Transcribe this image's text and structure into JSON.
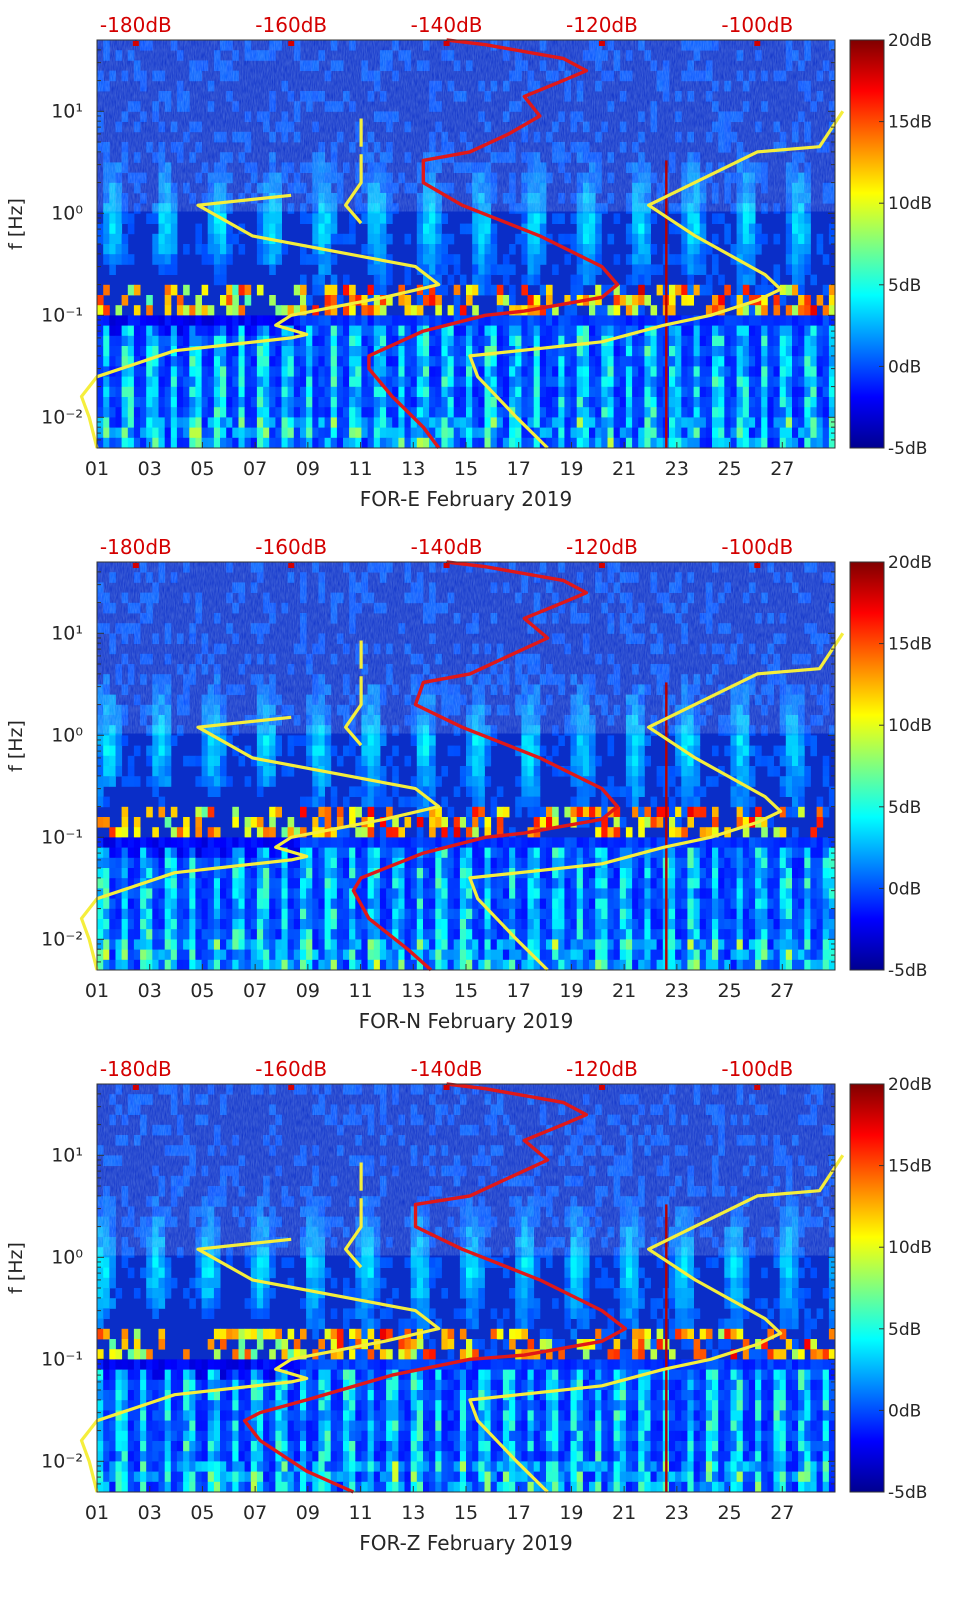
{
  "figure": {
    "ylabel": "f [Hz]",
    "y_ticks": [
      "10⁻²",
      "10⁻¹",
      "10⁰",
      "10¹"
    ],
    "x_ticks": [
      "01",
      "03",
      "05",
      "07",
      "09",
      "11",
      "13",
      "15",
      "17",
      "19",
      "21",
      "23",
      "25",
      "27"
    ],
    "top_ticks": [
      "-180dB",
      "-160dB",
      "-140dB",
      "-120dB",
      "-100dB"
    ],
    "colorbar_ticks": [
      "20dB",
      "15dB",
      "10dB",
      "5dB",
      "0dB",
      "-5dB"
    ],
    "colors": {
      "psd_curve": "#e01818",
      "reference_curves": "#f5ee3c",
      "top_tick_labels": "#d40000"
    }
  },
  "chart_data": [
    {
      "type": "heatmap",
      "xlabel": "FOR-E February 2019",
      "ylabel": "f [Hz]",
      "x_range_days": [
        1,
        29
      ],
      "y_range_hz": [
        0.005,
        50
      ],
      "y_scale": "log",
      "color_range_db": [
        -5,
        20
      ],
      "colormap": "jet",
      "top_axis": {
        "label_values_db": [
          -180,
          -160,
          -140,
          -120,
          -100
        ],
        "color": "#d40000"
      },
      "overlay_curves": [
        {
          "color": "#e01818",
          "points_db_hz": [
            [
              -141,
              0.005
            ],
            [
              -143,
              0.008
            ],
            [
              -147,
              0.016
            ],
            [
              -150,
              0.03
            ],
            [
              -150,
              0.04
            ],
            [
              -143,
              0.07
            ],
            [
              -135,
              0.1
            ],
            [
              -130,
              0.11
            ],
            [
              -120,
              0.15
            ],
            [
              -118,
              0.2
            ],
            [
              -120,
              0.3
            ],
            [
              -128,
              0.6
            ],
            [
              -138,
              1.2
            ],
            [
              -143,
              2
            ],
            [
              -143,
              3.3
            ],
            [
              -137,
              4
            ],
            [
              -132,
              6
            ],
            [
              -128,
              9
            ],
            [
              -130,
              14
            ],
            [
              -125,
              20
            ],
            [
              -122,
              25
            ],
            [
              -125,
              33
            ],
            [
              -135,
              45
            ],
            [
              -140,
              50
            ]
          ]
        },
        {
          "color": "#f5ee3c",
          "points_db_hz": [
            [
              -151,
              4.5
            ],
            [
              -151,
              8.5
            ]
          ]
        },
        {
          "color": "#f5ee3c",
          "points_db_hz": [
            [
              -151,
              0.8
            ],
            [
              -153,
              1.2
            ],
            [
              -151,
              2
            ],
            [
              -151,
              3.8
            ]
          ]
        },
        {
          "color": "#f5ee3c",
          "points_db_hz": [
            [
              -185,
              0.005
            ],
            [
              -186,
              0.01
            ],
            [
              -187,
              0.016
            ],
            [
              -185,
              0.025
            ],
            [
              -175,
              0.045
            ],
            [
              -160,
              0.06
            ],
            [
              -158,
              0.065
            ],
            [
              -162,
              0.08
            ],
            [
              -160,
              0.1
            ],
            [
              -148,
              0.15
            ],
            [
              -141,
              0.2
            ],
            [
              -144,
              0.3
            ],
            [
              -165,
              0.6
            ],
            [
              -172,
              1.2
            ],
            [
              -160,
              1.5
            ]
          ]
        },
        {
          "color": "#f5ee3c",
          "points_db_hz": [
            [
              -127,
              0.005
            ],
            [
              -131,
              0.01
            ],
            [
              -136,
              0.025
            ],
            [
              -137,
              0.04
            ],
            [
              -120,
              0.055
            ],
            [
              -112,
              0.08
            ],
            [
              -106,
              0.1
            ],
            [
              -100,
              0.14
            ],
            [
              -97,
              0.18
            ],
            [
              -99,
              0.25
            ],
            [
              -108,
              0.6
            ],
            [
              -114,
              1.2
            ],
            [
              -100,
              4
            ],
            [
              -92,
              4.5
            ],
            [
              -89,
              10
            ]
          ]
        }
      ]
    },
    {
      "type": "heatmap",
      "xlabel": "FOR-N February 2019",
      "ylabel": "f [Hz]",
      "x_range_days": [
        1,
        29
      ],
      "y_range_hz": [
        0.005,
        50
      ],
      "y_scale": "log",
      "color_range_db": [
        -5,
        20
      ],
      "colormap": "jet",
      "top_axis": {
        "label_values_db": [
          -180,
          -160,
          -140,
          -120,
          -100
        ],
        "color": "#d40000"
      },
      "overlay_curves": [
        {
          "color": "#e01818",
          "points_db_hz": [
            [
              -142,
              0.005
            ],
            [
              -145,
              0.008
            ],
            [
              -150,
              0.016
            ],
            [
              -152,
              0.03
            ],
            [
              -151,
              0.04
            ],
            [
              -143,
              0.07
            ],
            [
              -135,
              0.1
            ],
            [
              -130,
              0.11
            ],
            [
              -120,
              0.15
            ],
            [
              -118,
              0.2
            ],
            [
              -120,
              0.3
            ],
            [
              -128,
              0.6
            ],
            [
              -138,
              1.2
            ],
            [
              -144,
              2
            ],
            [
              -143,
              3.3
            ],
            [
              -137,
              4
            ],
            [
              -132,
              6
            ],
            [
              -127,
              9
            ],
            [
              -130,
              14
            ],
            [
              -125,
              20
            ],
            [
              -122,
              25
            ],
            [
              -125,
              33
            ],
            [
              -135,
              45
            ],
            [
              -140,
              50
            ]
          ]
        },
        {
          "color": "#f5ee3c",
          "points_db_hz": [
            [
              -151,
              4.5
            ],
            [
              -151,
              8.5
            ]
          ]
        },
        {
          "color": "#f5ee3c",
          "points_db_hz": [
            [
              -151,
              0.8
            ],
            [
              -153,
              1.2
            ],
            [
              -151,
              2
            ],
            [
              -151,
              3.8
            ]
          ]
        },
        {
          "color": "#f5ee3c",
          "points_db_hz": [
            [
              -185,
              0.005
            ],
            [
              -186,
              0.01
            ],
            [
              -187,
              0.016
            ],
            [
              -185,
              0.025
            ],
            [
              -175,
              0.045
            ],
            [
              -160,
              0.06
            ],
            [
              -158,
              0.065
            ],
            [
              -162,
              0.08
            ],
            [
              -160,
              0.1
            ],
            [
              -148,
              0.15
            ],
            [
              -141,
              0.2
            ],
            [
              -144,
              0.3
            ],
            [
              -165,
              0.6
            ],
            [
              -172,
              1.2
            ],
            [
              -160,
              1.5
            ]
          ]
        },
        {
          "color": "#f5ee3c",
          "points_db_hz": [
            [
              -127,
              0.005
            ],
            [
              -131,
              0.01
            ],
            [
              -136,
              0.025
            ],
            [
              -137,
              0.04
            ],
            [
              -120,
              0.055
            ],
            [
              -112,
              0.08
            ],
            [
              -106,
              0.1
            ],
            [
              -100,
              0.14
            ],
            [
              -97,
              0.18
            ],
            [
              -99,
              0.25
            ],
            [
              -108,
              0.6
            ],
            [
              -114,
              1.2
            ],
            [
              -100,
              4
            ],
            [
              -92,
              4.5
            ],
            [
              -89,
              10
            ]
          ]
        }
      ]
    },
    {
      "type": "heatmap",
      "xlabel": "FOR-Z February 2019",
      "ylabel": "f [Hz]",
      "x_range_days": [
        1,
        29
      ],
      "y_range_hz": [
        0.005,
        50
      ],
      "y_scale": "log",
      "color_range_db": [
        -5,
        20
      ],
      "colormap": "jet",
      "top_axis": {
        "label_values_db": [
          -180,
          -160,
          -140,
          -120,
          -100
        ],
        "color": "#d40000"
      },
      "overlay_curves": [
        {
          "color": "#e01818",
          "points_db_hz": [
            [
              -152,
              0.005
            ],
            [
              -158,
              0.008
            ],
            [
              -164,
              0.016
            ],
            [
              -166,
              0.025
            ],
            [
              -164,
              0.03
            ],
            [
              -158,
              0.04
            ],
            [
              -147,
              0.07
            ],
            [
              -137,
              0.1
            ],
            [
              -130,
              0.11
            ],
            [
              -120,
              0.15
            ],
            [
              -117,
              0.2
            ],
            [
              -120,
              0.3
            ],
            [
              -128,
              0.6
            ],
            [
              -138,
              1.2
            ],
            [
              -144,
              2
            ],
            [
              -144,
              3.3
            ],
            [
              -137,
              4
            ],
            [
              -132,
              6
            ],
            [
              -127,
              9
            ],
            [
              -130,
              14
            ],
            [
              -125,
              20
            ],
            [
              -122,
              25
            ],
            [
              -125,
              33
            ],
            [
              -135,
              45
            ],
            [
              -140,
              50
            ]
          ]
        },
        {
          "color": "#f5ee3c",
          "points_db_hz": [
            [
              -151,
              4.5
            ],
            [
              -151,
              8.5
            ]
          ]
        },
        {
          "color": "#f5ee3c",
          "points_db_hz": [
            [
              -151,
              0.8
            ],
            [
              -153,
              1.2
            ],
            [
              -151,
              2
            ],
            [
              -151,
              3.8
            ]
          ]
        },
        {
          "color": "#f5ee3c",
          "points_db_hz": [
            [
              -185,
              0.005
            ],
            [
              -186,
              0.01
            ],
            [
              -187,
              0.016
            ],
            [
              -185,
              0.025
            ],
            [
              -175,
              0.045
            ],
            [
              -160,
              0.06
            ],
            [
              -158,
              0.065
            ],
            [
              -162,
              0.08
            ],
            [
              -160,
              0.1
            ],
            [
              -148,
              0.15
            ],
            [
              -141,
              0.2
            ],
            [
              -144,
              0.3
            ],
            [
              -165,
              0.6
            ],
            [
              -172,
              1.2
            ],
            [
              -160,
              1.5
            ]
          ]
        },
        {
          "color": "#f5ee3c",
          "points_db_hz": [
            [
              -127,
              0.005
            ],
            [
              -131,
              0.01
            ],
            [
              -136,
              0.025
            ],
            [
              -137,
              0.04
            ],
            [
              -120,
              0.055
            ],
            [
              -112,
              0.08
            ],
            [
              -106,
              0.1
            ],
            [
              -100,
              0.14
            ],
            [
              -97,
              0.18
            ],
            [
              -99,
              0.25
            ],
            [
              -108,
              0.6
            ],
            [
              -114,
              1.2
            ],
            [
              -100,
              4
            ],
            [
              -92,
              4.5
            ],
            [
              -89,
              10
            ]
          ]
        }
      ]
    }
  ]
}
